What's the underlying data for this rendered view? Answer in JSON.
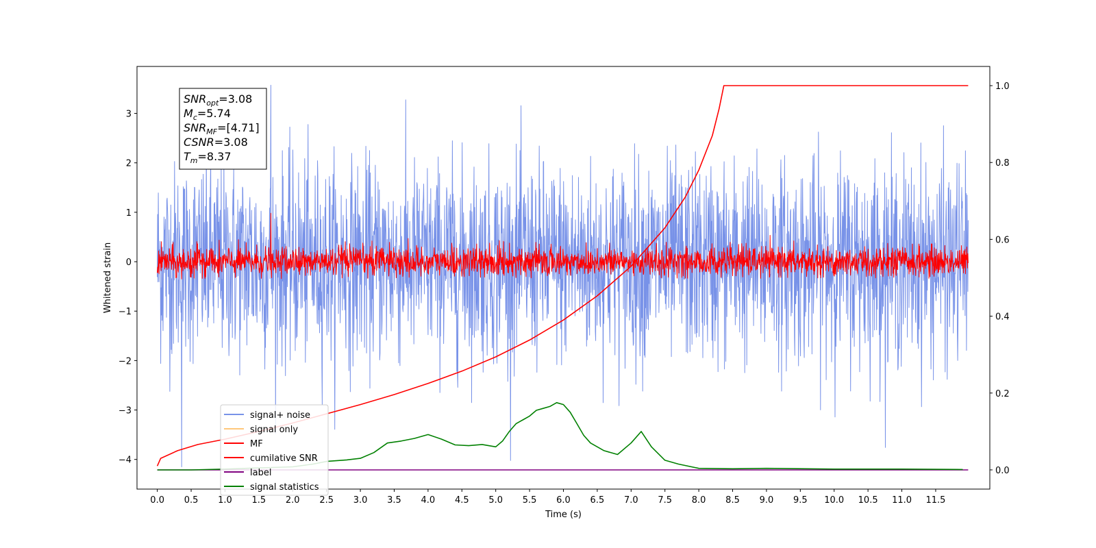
{
  "chart_data": {
    "type": "line",
    "xlabel": "Time (s)",
    "ylabel": "Whitened strain",
    "xlim": [
      -0.3,
      12.3
    ],
    "ylim": [
      -4.6,
      3.95
    ],
    "y2lim": [
      -0.05,
      1.05
    ],
    "x_ticks": [
      "0.0",
      "0.5",
      "1.0",
      "1.5",
      "2.0",
      "2.5",
      "3.0",
      "3.5",
      "4.0",
      "4.5",
      "5.0",
      "5.5",
      "6.0",
      "6.5",
      "7.0",
      "7.5",
      "8.0",
      "8.5",
      "9.0",
      "9.5",
      "10.0",
      "10.5",
      "11.0",
      "11.5"
    ],
    "y_ticks": [
      "3",
      "2",
      "1",
      "0",
      "−1",
      "−2",
      "−3",
      "−4"
    ],
    "y2_ticks": [
      "1.0",
      "0.8",
      "0.6",
      "0.4",
      "0.2",
      "0.0"
    ],
    "grid": false,
    "legend_position": "lower-left",
    "stats_box": [
      {
        "sym": "SNR",
        "sub": "opt",
        "val": "=3.08"
      },
      {
        "sym": "M",
        "sub": "c",
        "val": "=5.74"
      },
      {
        "sym": "SNR",
        "sub": "MF",
        "val": "=[4.71]"
      },
      {
        "sym": "CSNR",
        "sub": "",
        "val": "=3.08"
      },
      {
        "sym": "T",
        "sub": "m",
        "val": "=8.37"
      }
    ],
    "series": [
      {
        "name": "signal+ noise",
        "color": "#7892e8",
        "axis": "left",
        "kind": "noise",
        "x_range": [
          0.0,
          11.98
        ],
        "mean": 0.0,
        "std": 1.0,
        "peaks": [
          3.57,
          -4.15
        ]
      },
      {
        "name": "signal only",
        "color": "#ffc77a",
        "axis": "left",
        "kind": "flat",
        "x_range": [
          0.0,
          11.98
        ],
        "values": []
      },
      {
        "name": "MF",
        "color": "#ff0000",
        "axis": "left",
        "kind": "noise",
        "x_range": [
          0.0,
          11.98
        ],
        "mean": 0.0,
        "std": 0.15,
        "peaks": [
          0.98,
          -0.35
        ]
      },
      {
        "name": "cumilative SNR",
        "color": "#ff0000",
        "axis": "right",
        "x": [
          0.0,
          0.05,
          0.3,
          0.6,
          1.0,
          1.5,
          2.0,
          2.5,
          3.0,
          3.5,
          4.0,
          4.5,
          5.0,
          5.5,
          6.0,
          6.5,
          7.0,
          7.5,
          7.8,
          8.0,
          8.2,
          8.3,
          8.37,
          8.5,
          9.0,
          10.0,
          11.0,
          11.98
        ],
        "values": [
          0.01,
          0.03,
          0.05,
          0.066,
          0.08,
          0.1,
          0.122,
          0.146,
          0.17,
          0.196,
          0.225,
          0.257,
          0.294,
          0.338,
          0.39,
          0.453,
          0.53,
          0.63,
          0.71,
          0.78,
          0.87,
          0.94,
          1.0,
          1.0,
          1.0,
          1.0,
          1.0,
          1.0
        ]
      },
      {
        "name": "label",
        "color": "#800080",
        "axis": "right",
        "x": [
          0.0,
          11.98
        ],
        "values": [
          0.0,
          0.0
        ]
      },
      {
        "name": "signal statistics",
        "color": "#008000",
        "axis": "right",
        "x": [
          0.0,
          0.5,
          1.0,
          1.5,
          2.0,
          2.3,
          2.5,
          2.8,
          3.0,
          3.2,
          3.4,
          3.6,
          3.8,
          4.0,
          4.2,
          4.4,
          4.6,
          4.8,
          5.0,
          5.1,
          5.2,
          5.3,
          5.4,
          5.5,
          5.6,
          5.7,
          5.8,
          5.9,
          6.0,
          6.1,
          6.2,
          6.3,
          6.4,
          6.5,
          6.6,
          6.8,
          7.0,
          7.15,
          7.3,
          7.5,
          7.7,
          8.0,
          8.5,
          9.0,
          10.0,
          11.0,
          11.9
        ],
        "values": [
          0.0,
          0.0,
          0.002,
          0.005,
          0.008,
          0.015,
          0.022,
          0.026,
          0.03,
          0.045,
          0.07,
          0.075,
          0.082,
          0.092,
          0.08,
          0.065,
          0.063,
          0.066,
          0.06,
          0.075,
          0.1,
          0.12,
          0.13,
          0.14,
          0.155,
          0.16,
          0.165,
          0.175,
          0.17,
          0.15,
          0.12,
          0.09,
          0.07,
          0.06,
          0.05,
          0.04,
          0.07,
          0.1,
          0.06,
          0.025,
          0.015,
          0.004,
          0.003,
          0.004,
          0.002,
          0.002,
          0.001
        ]
      }
    ]
  }
}
